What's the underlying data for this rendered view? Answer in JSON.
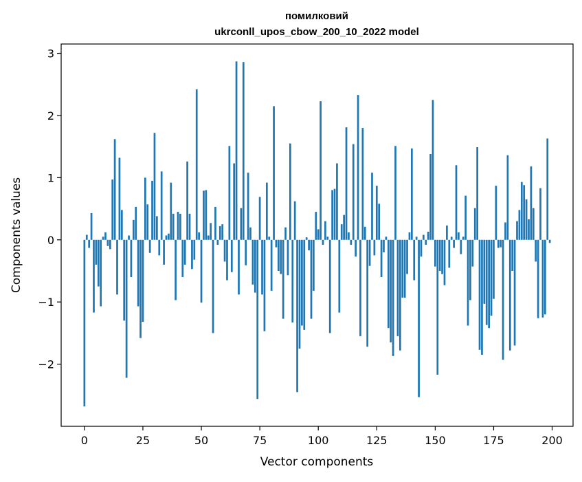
{
  "chart_data": {
    "type": "bar",
    "title": "помилковий",
    "subtitle": "ukrconll_upos_cbow_200_10_2022 model",
    "xlabel": "Vector components",
    "ylabel": "Components values",
    "xlim": [
      -9.95,
      208.95
    ],
    "ylim": [
      -3.0,
      3.15
    ],
    "grid": false,
    "bar_color": "#1f77b4",
    "xticks": [
      {
        "value": 0,
        "label": "0"
      },
      {
        "value": 25,
        "label": "25"
      },
      {
        "value": 50,
        "label": "50"
      },
      {
        "value": 75,
        "label": "75"
      },
      {
        "value": 100,
        "label": "100"
      },
      {
        "value": 125,
        "label": "125"
      },
      {
        "value": 150,
        "label": "150"
      },
      {
        "value": 175,
        "label": "175"
      },
      {
        "value": 200,
        "label": "200"
      }
    ],
    "yticks": [
      {
        "value": -2,
        "label": "−2"
      },
      {
        "value": -1,
        "label": "−1"
      },
      {
        "value": 0,
        "label": "0"
      },
      {
        "value": 1,
        "label": "1"
      },
      {
        "value": 2,
        "label": "2"
      },
      {
        "value": 3,
        "label": "3"
      }
    ],
    "x_start": 0,
    "values": [
      -2.68,
      0.08,
      -0.13,
      0.43,
      -1.17,
      -0.4,
      -0.75,
      -1.07,
      0.05,
      0.12,
      -0.1,
      -0.15,
      0.97,
      1.62,
      -0.88,
      1.32,
      0.48,
      -1.3,
      -2.22,
      0.07,
      -0.6,
      0.32,
      0.53,
      -1.07,
      -1.58,
      -1.32,
      1.0,
      0.57,
      -0.21,
      0.95,
      1.72,
      0.38,
      -0.25,
      1.1,
      -0.4,
      0.07,
      0.1,
      0.92,
      0.42,
      -0.97,
      0.45,
      0.42,
      -0.6,
      -0.4,
      1.26,
      0.42,
      -0.47,
      -0.32,
      2.42,
      0.12,
      -1.01,
      0.79,
      0.8,
      0.07,
      0.27,
      -1.5,
      0.53,
      -0.08,
      0.22,
      0.25,
      -0.35,
      -0.65,
      1.51,
      -0.52,
      1.23,
      2.87,
      -0.88,
      0.51,
      2.86,
      -0.41,
      1.08,
      0.2,
      -0.72,
      -0.85,
      -2.56,
      0.69,
      -0.88,
      -1.47,
      0.92,
      0.05,
      -0.82,
      2.15,
      -0.12,
      -0.5,
      -0.55,
      -1.27,
      0.2,
      -0.57,
      1.55,
      -1.33,
      0.62,
      -2.45,
      -1.75,
      -1.38,
      -1.45,
      0.04,
      -0.17,
      -1.27,
      -0.82,
      0.45,
      0.17,
      2.23,
      -0.08,
      0.3,
      0.05,
      -1.5,
      0.8,
      0.82,
      1.23,
      -1.17,
      0.25,
      0.4,
      1.81,
      0.12,
      -0.08,
      1.54,
      -0.27,
      2.33,
      -1.55,
      1.8,
      0.21,
      -1.72,
      -0.42,
      1.08,
      -0.25,
      0.87,
      0.58,
      -0.6,
      -0.2,
      0.05,
      -1.42,
      -1.65,
      -1.87,
      1.51,
      -1.55,
      -1.78,
      -0.93,
      -0.93,
      -0.55,
      0.12,
      1.47,
      -0.65,
      0.05,
      -2.53,
      -0.27,
      0.08,
      -0.08,
      0.13,
      1.38,
      2.25,
      -0.43,
      -2.17,
      -0.5,
      -0.55,
      -0.73,
      0.23,
      -0.45,
      0.05,
      -0.13,
      1.2,
      0.12,
      -0.23,
      0.05,
      0.71,
      -1.38,
      -0.97,
      -0.43,
      0.51,
      1.49,
      -1.77,
      -1.85,
      -1.03,
      -1.37,
      -1.42,
      -1.22,
      -0.95,
      0.87,
      -0.13,
      -0.12,
      -1.93,
      0.28,
      1.36,
      -1.78,
      -0.5,
      -1.7,
      0.3,
      0.48,
      0.93,
      0.88,
      0.65,
      0.33,
      1.18,
      0.51,
      -0.35,
      -1.26,
      0.83,
      -1.25,
      -1.2,
      1.63,
      -0.05
    ]
  }
}
